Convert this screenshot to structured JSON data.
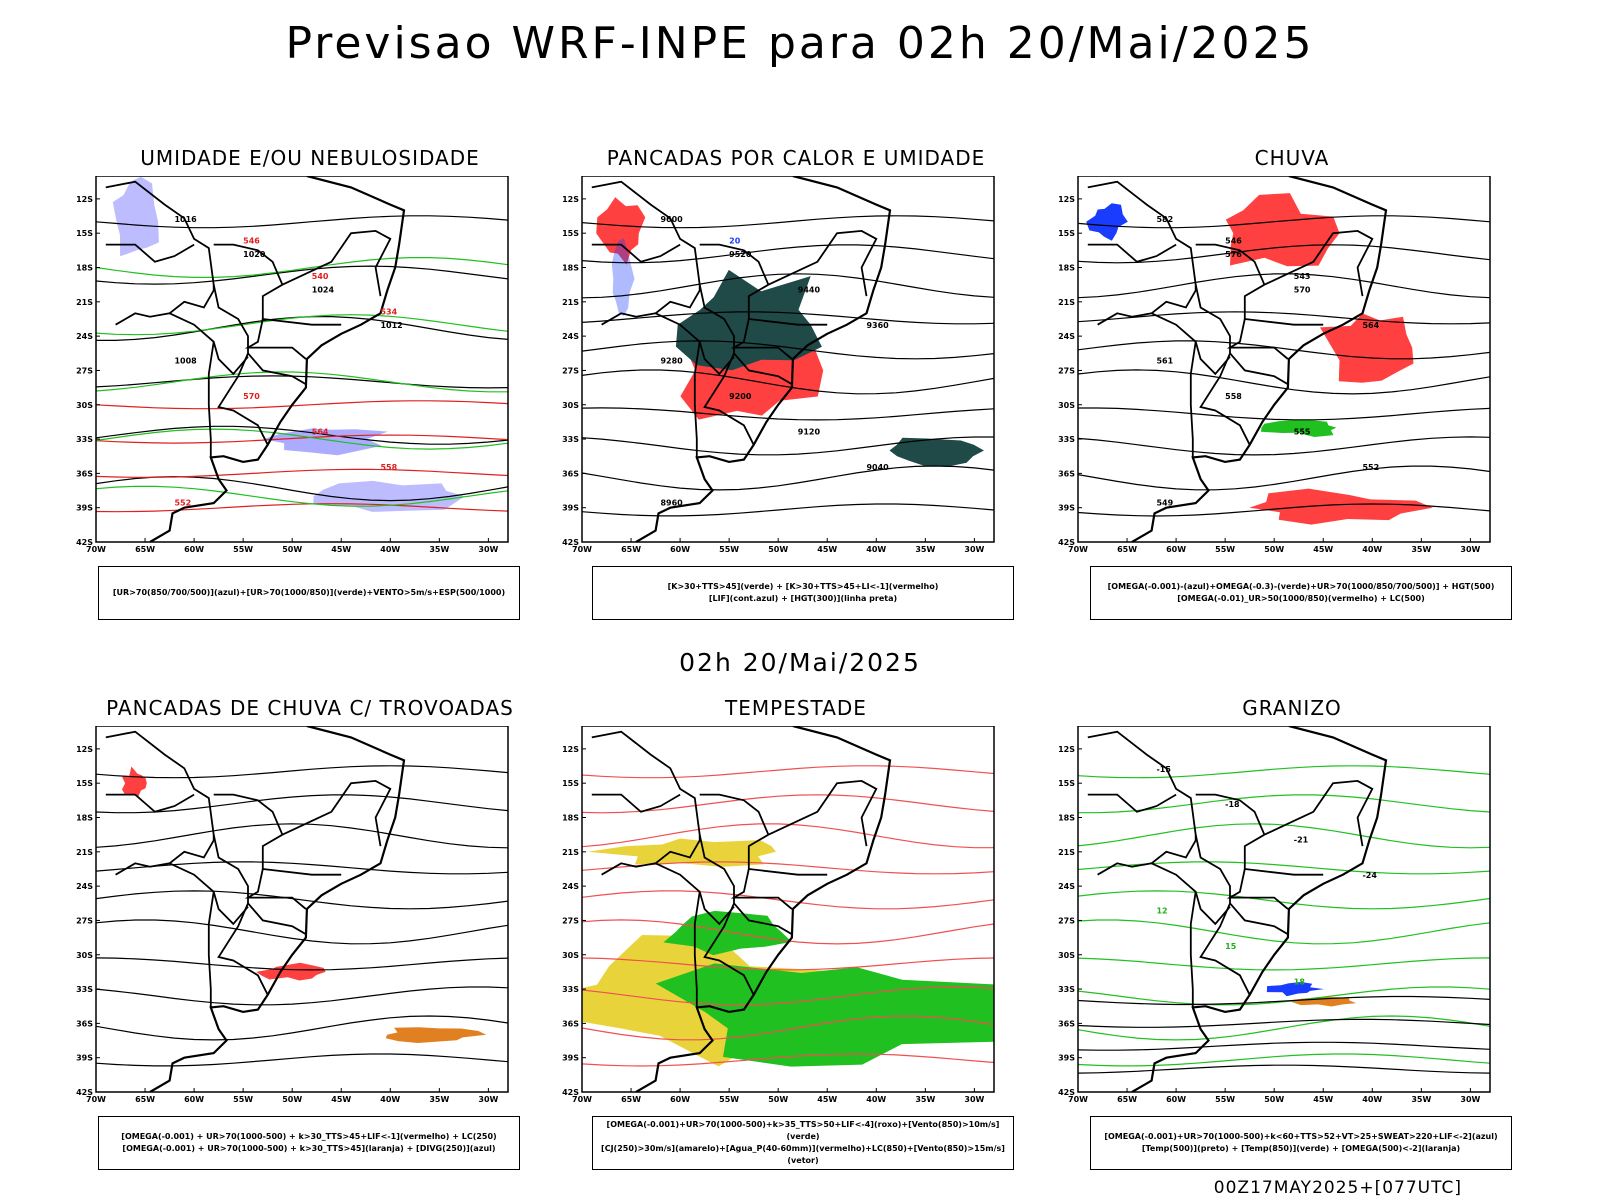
{
  "title": "Previsao WRF-INPE  para 02h 20/Mai/2025",
  "mid_title": "02h 20/Mai/2025",
  "footer": "00Z17MAY2025+[077UTC]",
  "lat_labels": [
    "12S",
    "15S",
    "18S",
    "21S",
    "24S",
    "27S",
    "30S",
    "33S",
    "36S",
    "39S",
    "42S"
  ],
  "lon_labels": [
    "70W",
    "65W",
    "60W",
    "55W",
    "50W",
    "45W",
    "40W",
    "35W",
    "30W"
  ],
  "panels": [
    {
      "title": "UMIDADE E/OU NEBULOSIDADE",
      "legend": [
        "[UR>70(850/700/500)](azul)+[UR>70(1000/850)](verde)+VENTO>5m/s+ESP(500/1000)"
      ],
      "contours": [
        {
          "value": "1016",
          "color": "#000000"
        },
        {
          "value": "1020",
          "color": "#000000"
        },
        {
          "value": "1024",
          "color": "#000000"
        },
        {
          "value": "1012",
          "color": "#000000"
        },
        {
          "value": "1008",
          "color": "#000000"
        },
        {
          "value": "570",
          "color": "#e02020"
        },
        {
          "value": "564",
          "color": "#e02020"
        },
        {
          "value": "558",
          "color": "#e02020"
        },
        {
          "value": "552",
          "color": "#e02020"
        },
        {
          "value": "546",
          "color": "#e02020"
        },
        {
          "value": "540",
          "color": "#e02020"
        },
        {
          "value": "534",
          "color": "#e02020"
        }
      ]
    },
    {
      "title": "PANCADAS POR CALOR E UMIDADE",
      "legend": [
        "[K>30+TTS>45](verde) + [K>30+TTS>45+LI<-1](vermelho)",
        "[LIF](cont.azul) + [HGT(300)](linha preta)"
      ],
      "contours": [
        {
          "value": "9600",
          "color": "#000000"
        },
        {
          "value": "9520",
          "color": "#000000"
        },
        {
          "value": "9440",
          "color": "#000000"
        },
        {
          "value": "9360",
          "color": "#000000"
        },
        {
          "value": "9280",
          "color": "#000000"
        },
        {
          "value": "9200",
          "color": "#000000"
        },
        {
          "value": "9120",
          "color": "#000000"
        },
        {
          "value": "9040",
          "color": "#000000"
        },
        {
          "value": "8960",
          "color": "#000000"
        },
        {
          "value": "20",
          "color": "#1a3cff"
        }
      ]
    },
    {
      "title": "CHUVA",
      "legend": [
        "[OMEGA(-0.001)-(azul)+OMEGA(-0.3)-(verde)+UR>70(1000/850/700/500)] + HGT(500)",
        "[OMEGA(-0.01)_UR>50(1000/850)(vermelho) + LC(500)"
      ],
      "contours": [
        {
          "value": "582",
          "color": "#000000"
        },
        {
          "value": "576",
          "color": "#000000"
        },
        {
          "value": "570",
          "color": "#000000"
        },
        {
          "value": "564",
          "color": "#000000"
        },
        {
          "value": "561",
          "color": "#000000"
        },
        {
          "value": "558",
          "color": "#000000"
        },
        {
          "value": "555",
          "color": "#000000"
        },
        {
          "value": "552",
          "color": "#000000"
        },
        {
          "value": "549",
          "color": "#000000"
        },
        {
          "value": "546",
          "color": "#000000"
        },
        {
          "value": "543",
          "color": "#000000"
        }
      ]
    },
    {
      "title": "PANCADAS DE CHUVA C/ TROVOADAS",
      "legend": [
        "[OMEGA(-0.001) + UR>70(1000-500) + k>30_TTS>45+LIF<-1](vermelho) + LC(250)",
        "[OMEGA(-0.001) + UR>70(1000-500) + k>30_TTS>45](laranja) + [DIVG(250)](azul)"
      ],
      "contours": []
    },
    {
      "title": "TEMPESTADE",
      "legend": [
        "[OMEGA(-0.001)+UR>70(1000-500)+k>35_TTS>50+LIF<-4](roxo)+[Vento(850)>10m/s](verde)",
        "[CJ(250)>30m/s](amarelo)+[Agua_P(40-60mm)](vermelho)+LC(850)+[Vento(850)>15m/s](vetor)"
      ],
      "contours": []
    },
    {
      "title": "GRANIZO",
      "legend": [
        "[OMEGA(-0.001)+UR>70(1000-500)+k<60+TTS>52+VT>25+SWEAT>220+LIF<-2](azul)",
        "[Temp(500)](preto) + [Temp(850)](verde) + [OMEGA(500)<-2](laranja)"
      ],
      "contours": [
        {
          "value": "-15",
          "color": "#000000"
        },
        {
          "value": "-18",
          "color": "#000000"
        },
        {
          "value": "-21",
          "color": "#000000"
        },
        {
          "value": "-24",
          "color": "#000000"
        },
        {
          "value": "12",
          "color": "#20b020"
        },
        {
          "value": "15",
          "color": "#20b020"
        },
        {
          "value": "18",
          "color": "#20b020"
        }
      ]
    }
  ]
}
